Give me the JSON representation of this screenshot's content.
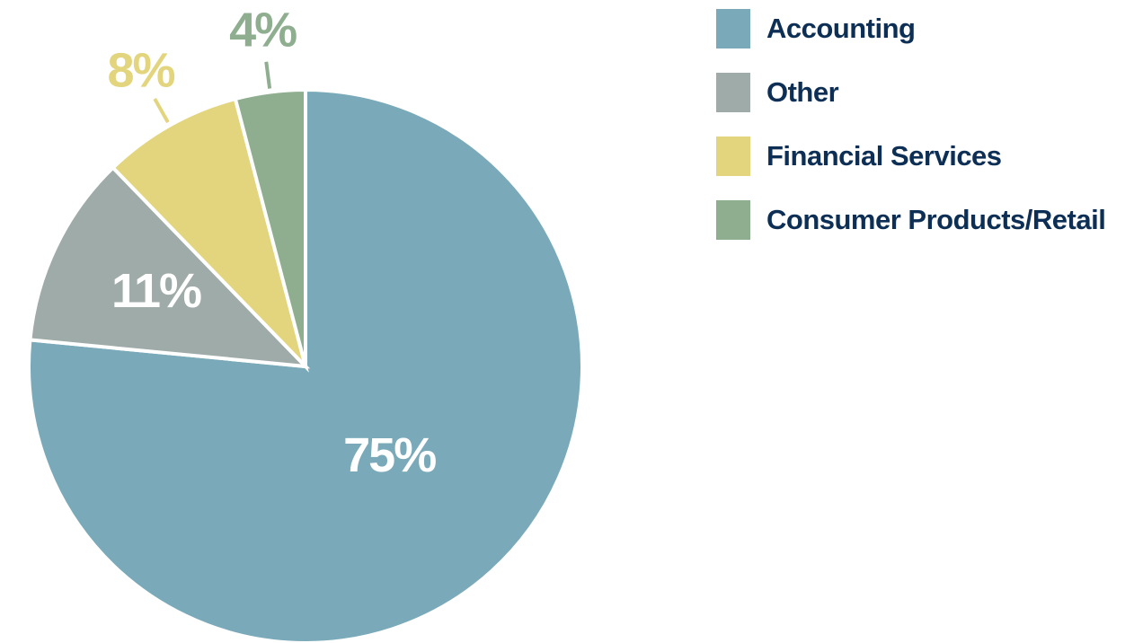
{
  "chart_data": {
    "type": "pie",
    "categories": [
      "Accounting",
      "Other",
      "Financial Services",
      "Consumer Products/Retail"
    ],
    "values": [
      75,
      11,
      8,
      4
    ],
    "value_labels": [
      "75%",
      "11%",
      "8%",
      "4%"
    ],
    "colors": [
      "#7aaab9",
      "#9eaba8",
      "#e2d57e",
      "#8fae8f"
    ],
    "legend": "right"
  }
}
